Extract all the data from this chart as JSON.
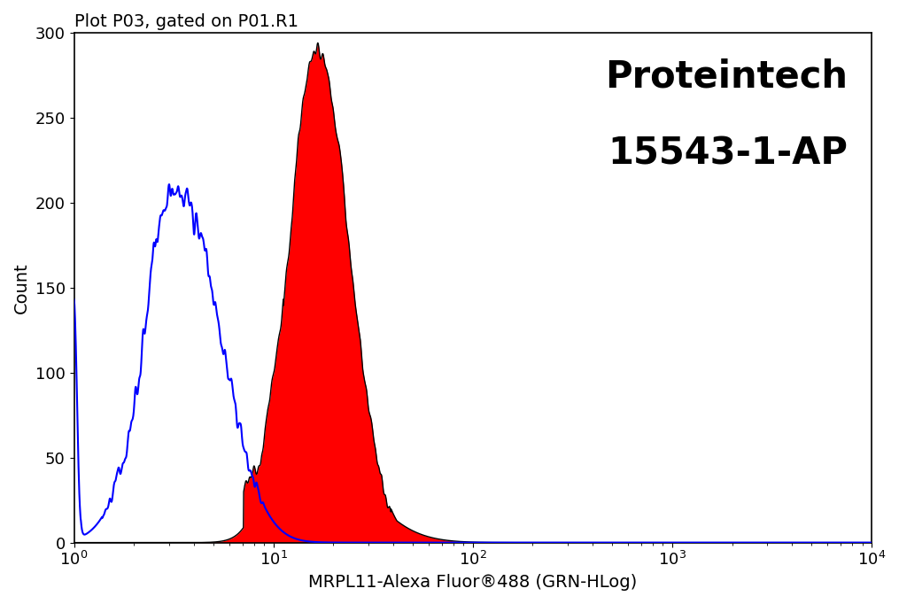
{
  "title": "Plot P03, gated on P01.R1",
  "xlabel": "MRPL11-Alexa Fluor®488 (GRN-HLog)",
  "ylabel": "Count",
  "watermark_line1": "Proteintech",
  "watermark_line2": "15543-1-AP",
  "xlim_log": [
    1,
    10000
  ],
  "ylim": [
    0,
    300
  ],
  "yticks": [
    0,
    50,
    100,
    150,
    200,
    250,
    300
  ],
  "blue_color": "#0000ff",
  "red_color": "#ff0000",
  "black_color": "#000000",
  "bg_color": "#ffffff",
  "title_fontsize": 14,
  "label_fontsize": 14,
  "tick_fontsize": 13,
  "watermark_fontsize": 30
}
